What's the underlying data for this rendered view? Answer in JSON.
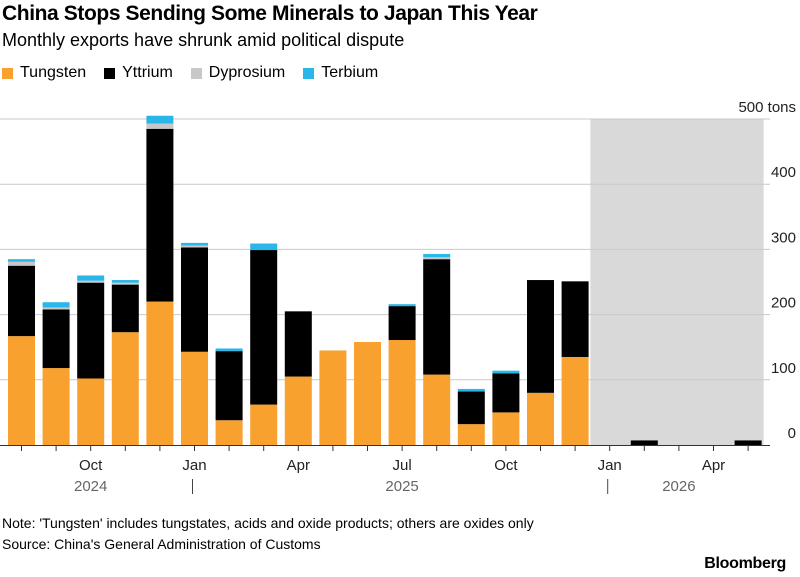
{
  "title": "China Stops Sending Some Minerals to Japan This Year",
  "subtitle": "Monthly exports have shrunk amid political dispute",
  "note": "Note: 'Tungsten' includes tungstates, acids and oxide products; others are oxides only",
  "source": "Source: China's General Administration of Customs",
  "brand": "Bloomberg",
  "legend": [
    {
      "label": "Tungsten",
      "color": "#f9a12f"
    },
    {
      "label": "Yttrium",
      "color": "#000000"
    },
    {
      "label": "Dyprosium",
      "color": "#c8c8c8"
    },
    {
      "label": "Terbium",
      "color": "#29b6e8"
    }
  ],
  "chart_data": {
    "type": "bar",
    "stacked": true,
    "categories": [
      "2024-08",
      "2024-09",
      "2024-10",
      "2024-11",
      "2024-12",
      "2025-01",
      "2025-02",
      "2025-03",
      "2025-04",
      "2025-05",
      "2025-06",
      "2025-07",
      "2025-08",
      "2025-09",
      "2025-10",
      "2025-11",
      "2025-12",
      "2026-01",
      "2026-02",
      "2026-03",
      "2026-04",
      "2026-05"
    ],
    "series": [
      {
        "name": "Tungsten",
        "color": "#f9a12f",
        "values": [
          167,
          118,
          102,
          173,
          220,
          143,
          38,
          62,
          105,
          145,
          158,
          161,
          108,
          32,
          50,
          80,
          135,
          0,
          0,
          0,
          0,
          0
        ]
      },
      {
        "name": "Yttrium",
        "color": "#000000",
        "values": [
          108,
          90,
          147,
          73,
          265,
          160,
          106,
          237,
          100,
          0,
          0,
          52,
          177,
          50,
          60,
          173,
          116,
          0,
          7,
          0,
          0,
          7
        ]
      },
      {
        "name": "Dyprosium",
        "color": "#c8c8c8",
        "values": [
          6,
          3,
          3,
          3,
          8,
          3,
          0,
          0,
          0,
          0,
          0,
          0,
          3,
          0,
          0,
          0,
          0,
          0,
          0,
          0,
          0,
          0
        ]
      },
      {
        "name": "Terbium",
        "color": "#29b6e8",
        "values": [
          4,
          8,
          8,
          4,
          12,
          4,
          4,
          10,
          0,
          0,
          0,
          3,
          5,
          4,
          4,
          0,
          0,
          0,
          0,
          0,
          0,
          0
        ]
      }
    ],
    "yaxis": {
      "ticks": [
        "0",
        "100",
        "200",
        "300",
        "400",
        "500 tons"
      ],
      "range": [
        0,
        500
      ]
    },
    "xaxis": {
      "month_labels": [
        {
          "label": "Oct",
          "index": 2
        },
        {
          "label": "Jan",
          "index": 5
        },
        {
          "label": "Apr",
          "index": 8
        },
        {
          "label": "Jul",
          "index": 11
        },
        {
          "label": "Oct",
          "index": 14
        },
        {
          "label": "Jan",
          "index": 17
        },
        {
          "label": "Apr",
          "index": 20
        }
      ],
      "year_labels": [
        {
          "label": "2024",
          "index": 2
        },
        {
          "label": "2025",
          "index": 11
        },
        {
          "label": "2026",
          "index": 19
        }
      ],
      "year_dividers": [
        5,
        17
      ]
    },
    "shaded_region": {
      "from": "2026-01",
      "to": "2026-05"
    },
    "grid": true
  }
}
